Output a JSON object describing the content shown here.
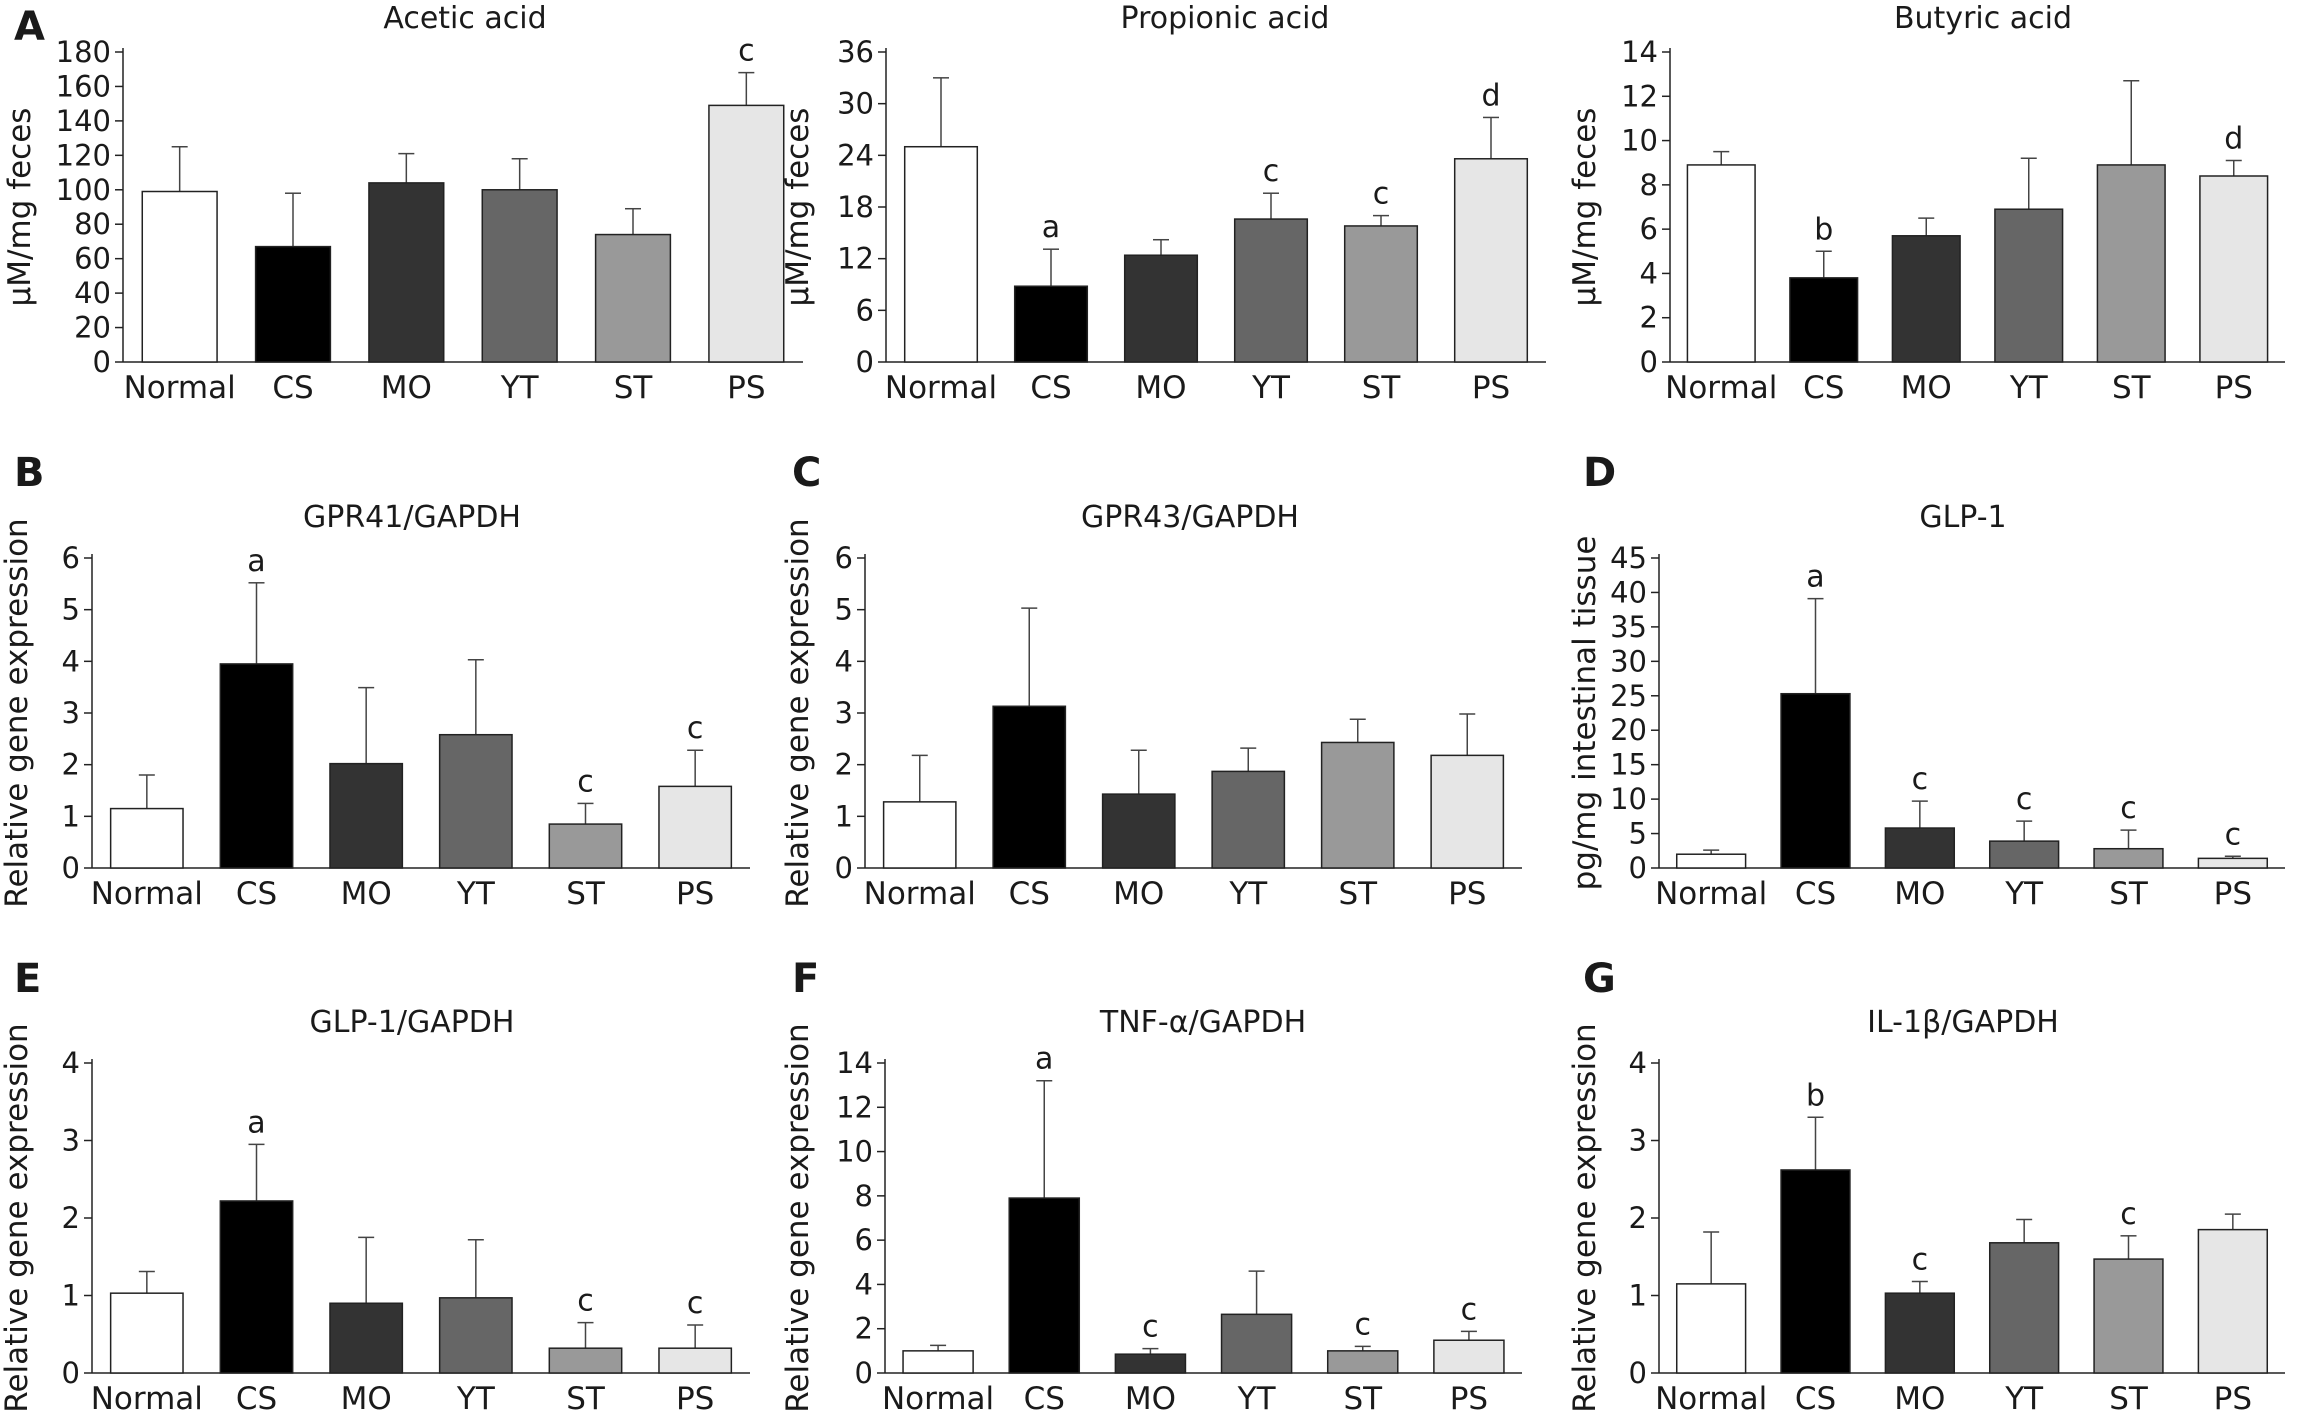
{
  "figure": {
    "categories": [
      "Normal",
      "CS",
      "MO",
      "YT",
      "ST",
      "PS"
    ],
    "colors": [
      "#ffffff",
      "#000000",
      "#333333",
      "#666666",
      "#999999",
      "#e6e6e6"
    ]
  },
  "chart_data": [
    {
      "id": "acetic",
      "type": "bar",
      "panel": "A",
      "title": "Acetic acid",
      "ylabel": "μM/mg feces",
      "ylim": [
        0,
        180
      ],
      "yticks": [
        0,
        20,
        40,
        60,
        80,
        100,
        120,
        140,
        160,
        180
      ],
      "categories": [
        "Normal",
        "CS",
        "MO",
        "YT",
        "ST",
        "PS"
      ],
      "values": [
        99,
        67,
        104,
        100,
        74,
        149
      ],
      "errors": [
        26,
        31,
        17,
        18,
        15,
        19
      ],
      "annotations": [
        "",
        "",
        "",
        "",
        "",
        "c"
      ]
    },
    {
      "id": "propionic",
      "type": "bar",
      "panel": "",
      "title": "Propionic acid",
      "ylabel": "μM/mg feces",
      "ylim": [
        0,
        36
      ],
      "yticks": [
        0,
        6,
        12,
        18,
        24,
        30,
        36
      ],
      "categories": [
        "Normal",
        "CS",
        "MO",
        "YT",
        "ST",
        "PS"
      ],
      "values": [
        25,
        8.8,
        12.4,
        16.6,
        15.8,
        23.6
      ],
      "errors": [
        8,
        4.3,
        1.8,
        3.0,
        1.2,
        4.8
      ],
      "annotations": [
        "",
        "a",
        "",
        "c",
        "c",
        "d"
      ]
    },
    {
      "id": "butyric",
      "type": "bar",
      "panel": "",
      "title": "Butyric acid",
      "ylabel": "μM/mg feces",
      "ylim": [
        0,
        14
      ],
      "yticks": [
        0,
        2,
        4,
        6,
        8,
        10,
        12,
        14
      ],
      "categories": [
        "Normal",
        "CS",
        "MO",
        "YT",
        "ST",
        "PS"
      ],
      "values": [
        8.9,
        3.8,
        5.7,
        6.9,
        8.9,
        8.4
      ],
      "errors": [
        0.6,
        1.2,
        0.8,
        2.3,
        3.8,
        0.7
      ],
      "annotations": [
        "",
        "b",
        "",
        "",
        "",
        "d"
      ]
    },
    {
      "id": "gpr41",
      "type": "bar",
      "panel": "B",
      "title": "GPR41/GAPDH",
      "ylabel": "Relative gene expression",
      "ylim": [
        0,
        6
      ],
      "yticks": [
        0,
        1,
        2,
        3,
        4,
        5,
        6
      ],
      "categories": [
        "Normal",
        "CS",
        "MO",
        "YT",
        "ST",
        "PS"
      ],
      "values": [
        1.15,
        3.95,
        2.02,
        2.58,
        0.85,
        1.58
      ],
      "errors": [
        0.65,
        1.57,
        1.47,
        1.45,
        0.4,
        0.7
      ],
      "annotations": [
        "",
        "a",
        "",
        "",
        "c",
        "c"
      ]
    },
    {
      "id": "gpr43",
      "type": "bar",
      "panel": "C",
      "title": "GPR43/GAPDH",
      "ylabel": "Relative gene expression",
      "ylim": [
        0,
        6
      ],
      "yticks": [
        0,
        1,
        2,
        3,
        4,
        5,
        6
      ],
      "categories": [
        "Normal",
        "CS",
        "MO",
        "YT",
        "ST",
        "PS"
      ],
      "values": [
        1.28,
        3.13,
        1.43,
        1.87,
        2.43,
        2.18
      ],
      "errors": [
        0.9,
        1.9,
        0.85,
        0.45,
        0.45,
        0.8
      ],
      "annotations": [
        "",
        "",
        "",
        "",
        "",
        ""
      ]
    },
    {
      "id": "glp1",
      "type": "bar",
      "panel": "D",
      "title": "GLP-1",
      "ylabel": "pg/mg intestinal tissue",
      "ylim": [
        0,
        45
      ],
      "yticks": [
        0,
        5,
        10,
        15,
        20,
        25,
        30,
        35,
        40,
        45
      ],
      "categories": [
        "Normal",
        "CS",
        "MO",
        "YT",
        "ST",
        "PS"
      ],
      "values": [
        2.0,
        25.3,
        5.8,
        3.9,
        2.8,
        1.4
      ],
      "errors": [
        0.6,
        13.8,
        3.9,
        2.9,
        2.7,
        0.3
      ],
      "annotations": [
        "",
        "a",
        "c",
        "c",
        "c",
        "c"
      ]
    },
    {
      "id": "glp1gapdh",
      "type": "bar",
      "panel": "E",
      "title": "GLP-1/GAPDH",
      "ylabel": "Relative gene expression",
      "ylim": [
        0,
        4
      ],
      "yticks": [
        0,
        1,
        2,
        3,
        4
      ],
      "categories": [
        "Normal",
        "CS",
        "MO",
        "YT",
        "ST",
        "PS"
      ],
      "values": [
        1.03,
        2.22,
        0.9,
        0.97,
        0.32,
        0.32
      ],
      "errors": [
        0.28,
        0.73,
        0.85,
        0.75,
        0.33,
        0.3
      ],
      "annotations": [
        "",
        "a",
        "",
        "",
        "c",
        "c"
      ]
    },
    {
      "id": "tnfa",
      "type": "bar",
      "panel": "F",
      "title": "TNF-α/GAPDH",
      "ylabel": "Relative gene expression",
      "ylim": [
        0,
        14
      ],
      "yticks": [
        0,
        2,
        4,
        6,
        8,
        10,
        12,
        14
      ],
      "categories": [
        "Normal",
        "CS",
        "MO",
        "YT",
        "ST",
        "PS"
      ],
      "values": [
        1.0,
        7.9,
        0.85,
        2.65,
        1.0,
        1.48
      ],
      "errors": [
        0.25,
        5.3,
        0.25,
        1.95,
        0.2,
        0.4
      ],
      "annotations": [
        "",
        "a",
        "c",
        "",
        "c",
        "c"
      ]
    },
    {
      "id": "il1b",
      "type": "bar",
      "panel": "G",
      "title": "IL-1β/GAPDH",
      "ylabel": "Relative gene expression",
      "ylim": [
        0,
        4
      ],
      "yticks": [
        0,
        1,
        2,
        3,
        4
      ],
      "categories": [
        "Normal",
        "CS",
        "MO",
        "YT",
        "ST",
        "PS"
      ],
      "values": [
        1.15,
        2.62,
        1.03,
        1.68,
        1.47,
        1.85
      ],
      "errors": [
        0.67,
        0.68,
        0.15,
        0.3,
        0.3,
        0.2
      ],
      "annotations": [
        "",
        "b",
        "c",
        "",
        "c",
        ""
      ]
    }
  ]
}
